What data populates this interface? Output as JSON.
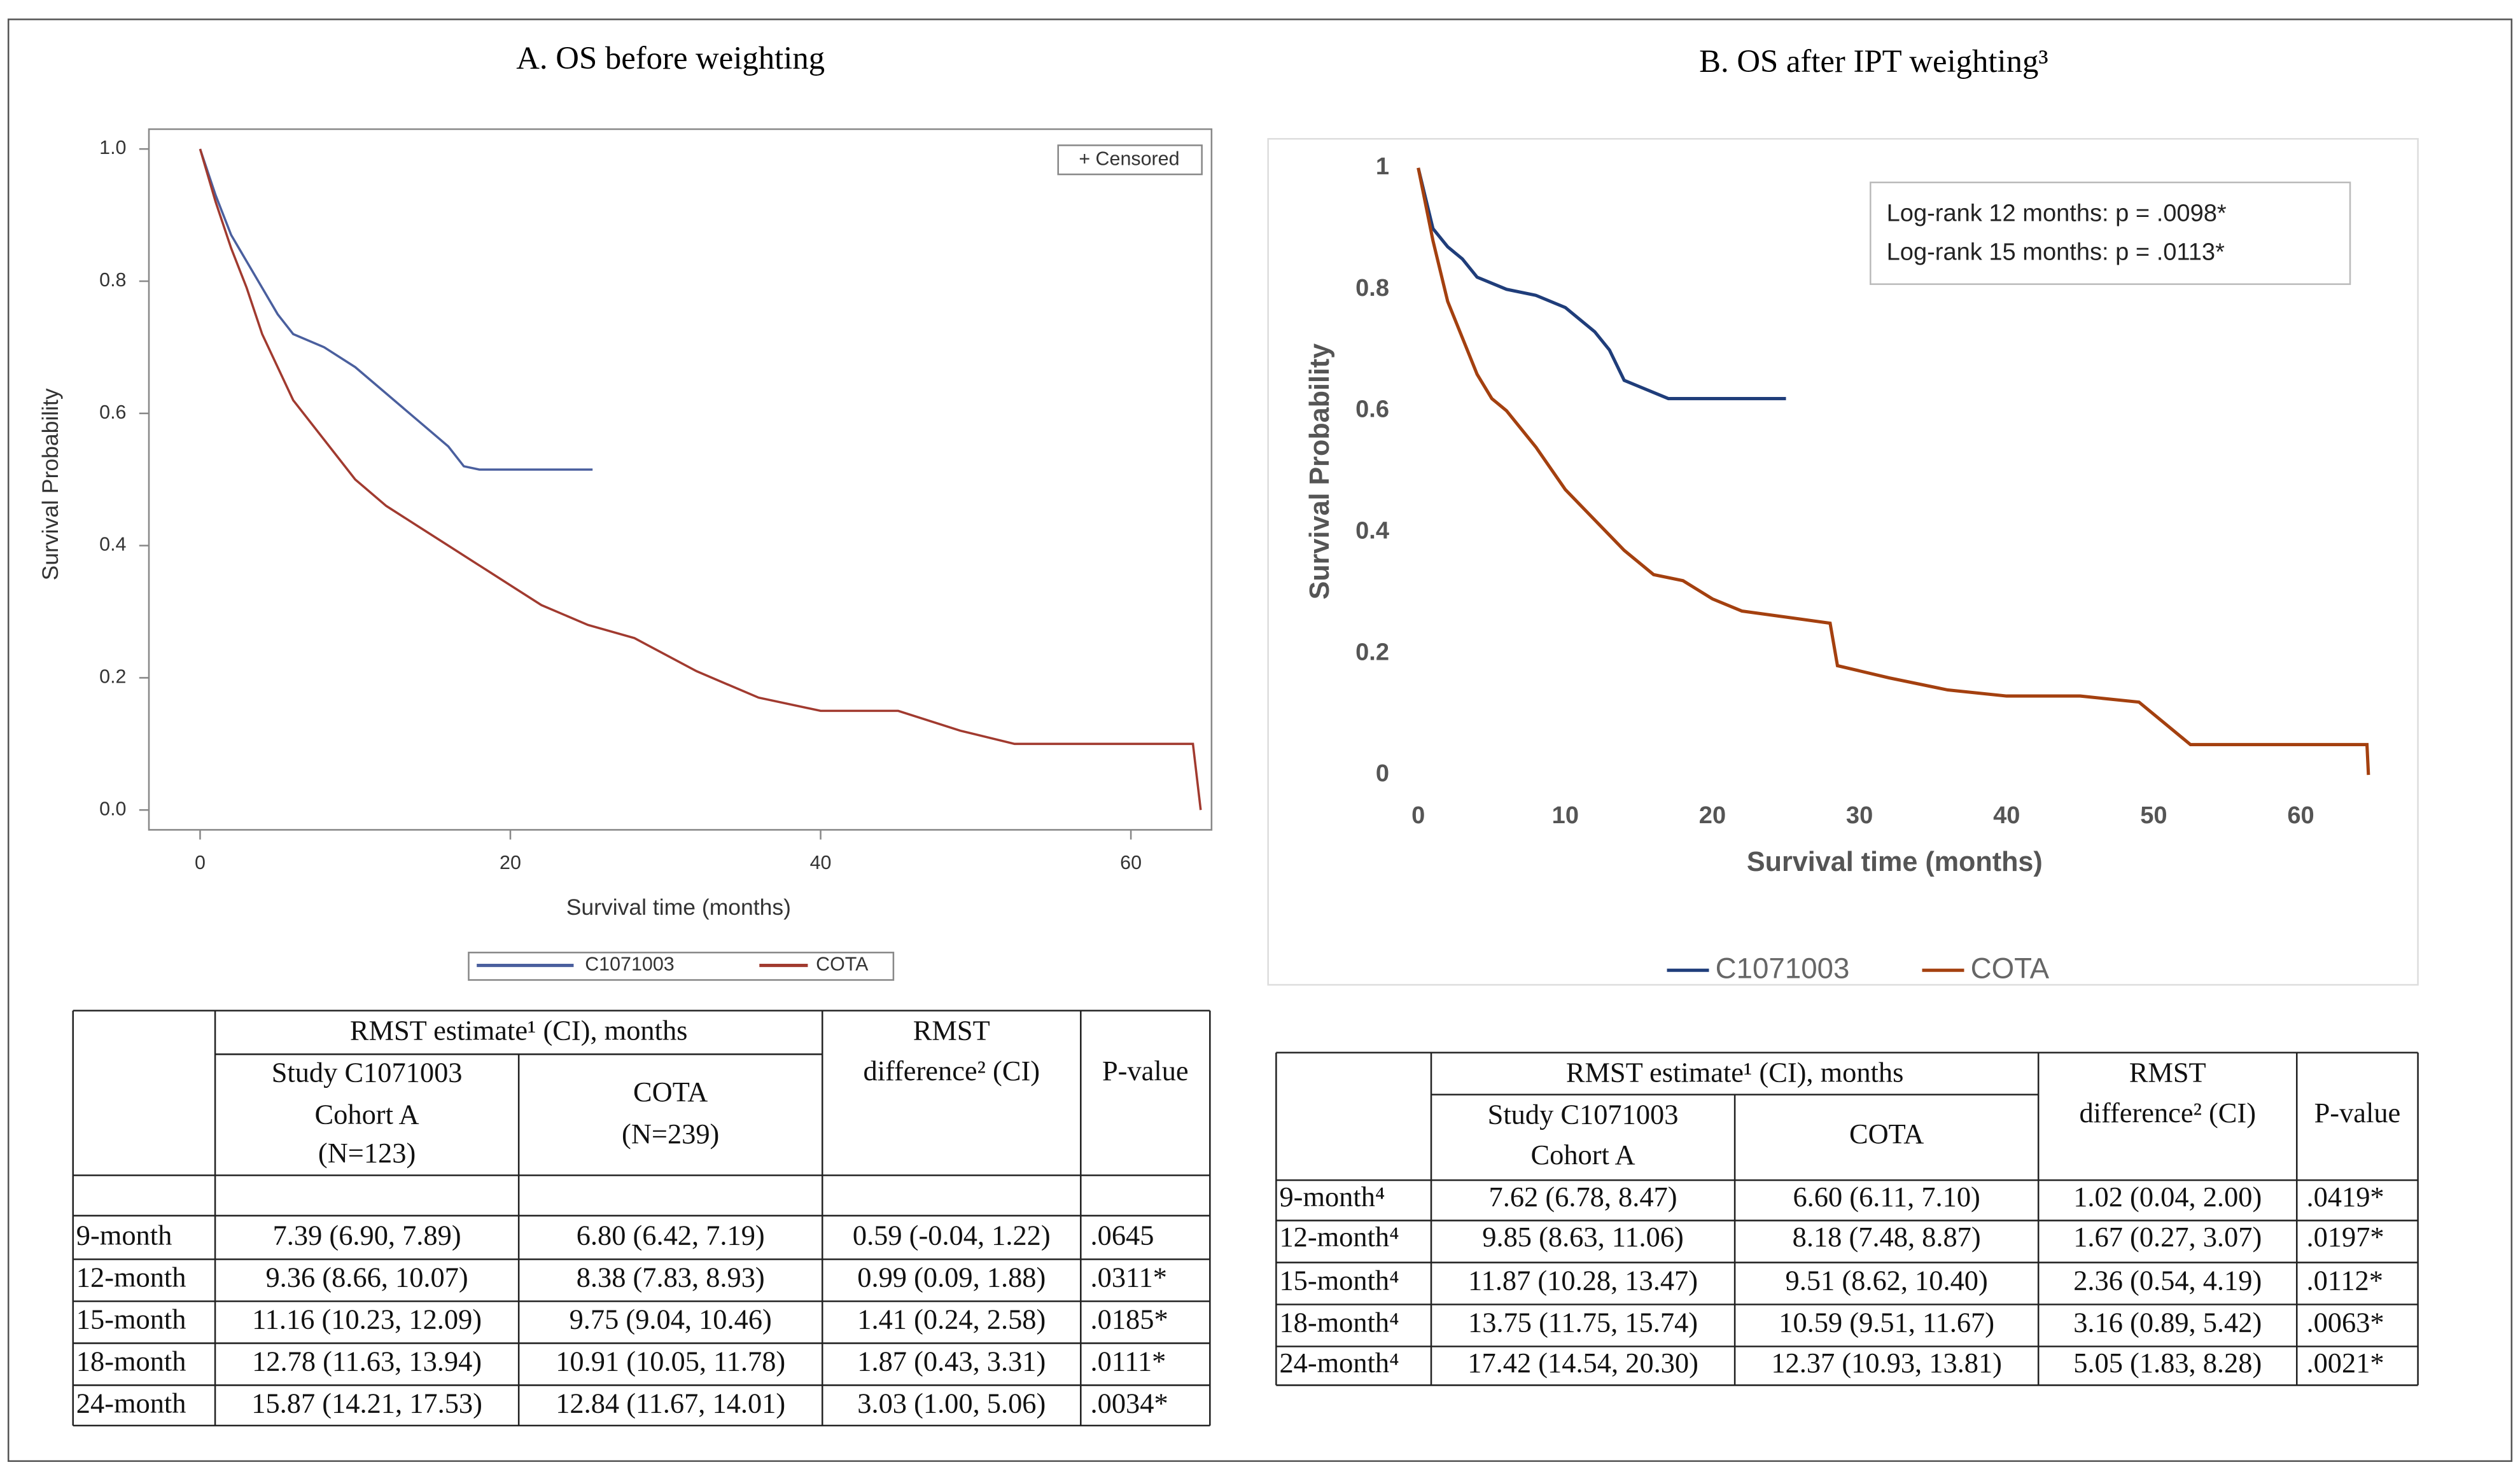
{
  "chart_data": [
    {
      "type": "line",
      "title": "A.  OS before weighting",
      "x_label": "Survival time (months)",
      "y_label": "Survival Probability",
      "censored_label": "+ Censored",
      "xlim": [
        -3.3,
        65.2
      ],
      "ylim": [
        -0.03,
        1.03
      ],
      "xticks": [
        0,
        20,
        40,
        60
      ],
      "yticks": [
        {
          "value": 0,
          "label": "0.0"
        },
        0.2,
        0.4,
        0.6,
        0.8,
        {
          "value": 1,
          "label": "1.0"
        }
      ],
      "series": [
        {
          "name": "C1071003",
          "color": "#4a5f9e",
          "x": [
            0,
            1,
            2,
            3,
            4,
            5,
            6,
            8,
            10,
            12,
            14,
            16,
            17,
            18,
            25.3
          ],
          "values": [
            1,
            0.93,
            0.87,
            0.83,
            0.79,
            0.75,
            0.72,
            0.7,
            0.67,
            0.63,
            0.59,
            0.55,
            0.52,
            0.515,
            0.515
          ]
        },
        {
          "name": "COTA",
          "color": "#a13a2f",
          "x": [
            0,
            1,
            2,
            3,
            4,
            5,
            6,
            8,
            10,
            12,
            14,
            16,
            18,
            20,
            22,
            25,
            28,
            32,
            36,
            40,
            45,
            49,
            52.5,
            64,
            64.5
          ],
          "values": [
            1,
            0.92,
            0.85,
            0.79,
            0.72,
            0.67,
            0.62,
            0.56,
            0.5,
            0.46,
            0.43,
            0.4,
            0.37,
            0.34,
            0.31,
            0.28,
            0.26,
            0.21,
            0.17,
            0.15,
            0.15,
            0.12,
            0.1,
            0.1,
            0
          ]
        }
      ]
    },
    {
      "type": "line",
      "title": "B.  OS after IPT weighting³",
      "x_label": "Survival time (months)",
      "y_label": "Survival Probability",
      "annotations": [
        "Log-rank 12 months: p = .0098*",
        "Log-rank 15 months: p = .0113*"
      ],
      "xlim": [
        0,
        65
      ],
      "ylim": [
        0,
        1
      ],
      "xticks": [
        0,
        10,
        20,
        30,
        40,
        50,
        60
      ],
      "yticks": [
        0,
        0.2,
        0.4,
        0.6,
        0.8,
        1
      ],
      "series": [
        {
          "name": "C1071003",
          "color": "#1f3d7a",
          "x": [
            0,
            1,
            2,
            3,
            4,
            6,
            8,
            10,
            12,
            13,
            14,
            15,
            17,
            25
          ],
          "values": [
            1,
            0.9,
            0.87,
            0.85,
            0.82,
            0.8,
            0.79,
            0.77,
            0.73,
            0.7,
            0.65,
            0.64,
            0.62,
            0.62
          ]
        },
        {
          "name": "COTA",
          "color": "#a4400f",
          "x": [
            0,
            1,
            2,
            3,
            4,
            5,
            6,
            8,
            10,
            12,
            14,
            16,
            18,
            20,
            22,
            25,
            28,
            28.5,
            32,
            36,
            40,
            45,
            49,
            52.5,
            64.5,
            64.6
          ],
          "values": [
            1,
            0.88,
            0.78,
            0.72,
            0.66,
            0.62,
            0.6,
            0.54,
            0.47,
            0.42,
            0.37,
            0.33,
            0.32,
            0.29,
            0.27,
            0.26,
            0.25,
            0.18,
            0.16,
            0.14,
            0.13,
            0.13,
            0.12,
            0.05,
            0.05,
            0
          ]
        }
      ]
    }
  ],
  "tables": [
    {
      "header_group": "RMST estimate¹ (CI), months",
      "header_difference": [
        "RMST",
        "difference² (CI)"
      ],
      "header_pvalue": "P-value",
      "subheaders": [
        [
          "Study C1071003",
          "Cohort A",
          "(N=123)"
        ],
        [
          "COTA",
          "(N=239)"
        ]
      ],
      "rows": [
        [
          "9-month",
          "7.39 (6.90, 7.89)",
          "6.80 (6.42, 7.19)",
          "0.59 (-0.04, 1.22)",
          ".0645"
        ],
        [
          "12-month",
          "9.36 (8.66, 10.07)",
          "8.38 (7.83, 8.93)",
          "0.99 (0.09, 1.88)",
          ".0311*"
        ],
        [
          "15-month",
          "11.16 (10.23, 12.09)",
          "9.75 (9.04, 10.46)",
          "1.41 (0.24, 2.58)",
          ".0185*"
        ],
        [
          "18-month",
          "12.78 (11.63, 13.94)",
          "10.91 (10.05, 11.78)",
          "1.87 (0.43, 3.31)",
          ".0111*"
        ],
        [
          "24-month",
          "15.87 (14.21, 17.53)",
          "12.84 (11.67, 14.01)",
          "3.03 (1.00, 5.06)",
          ".0034*"
        ]
      ]
    },
    {
      "header_group": "RMST estimate¹ (CI), months",
      "header_difference": [
        "RMST",
        "difference² (CI)"
      ],
      "header_pvalue": "P-value",
      "subheaders": [
        [
          "Study C1071003",
          "Cohort A"
        ],
        [
          "COTA"
        ]
      ],
      "rows": [
        [
          "9-month⁴",
          "7.62 (6.78, 8.47)",
          "6.60 (6.11, 7.10)",
          "1.02 (0.04, 2.00)",
          ".0419*"
        ],
        [
          "12-month⁴",
          "9.85 (8.63, 11.06)",
          "8.18 (7.48, 8.87)",
          "1.67 (0.27, 3.07)",
          ".0197*"
        ],
        [
          "15-month⁴",
          "11.87 (10.28, 13.47)",
          "9.51 (8.62, 10.40)",
          "2.36 (0.54, 4.19)",
          ".0112*"
        ],
        [
          "18-month⁴",
          "13.75 (11.75, 15.74)",
          "10.59 (9.51, 11.67)",
          "3.16 (0.89, 5.42)",
          ".0063*"
        ],
        [
          "24-month⁴",
          "17.42 (14.54, 20.30)",
          "12.37 (10.93, 13.81)",
          "5.05 (1.83, 8.28)",
          ".0021*"
        ]
      ]
    }
  ]
}
